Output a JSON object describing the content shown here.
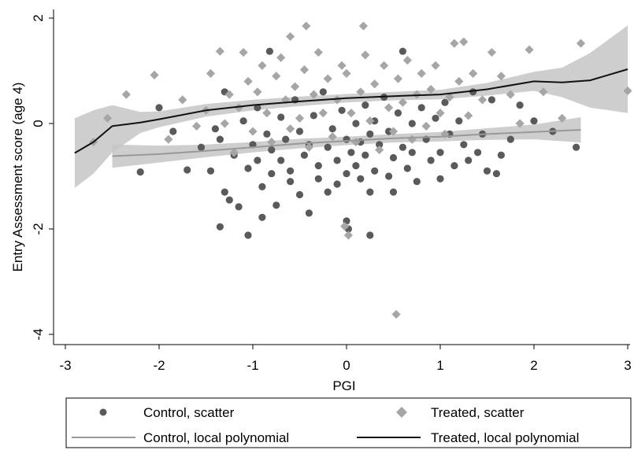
{
  "chart_data": {
    "type": "scatter",
    "xlabel": "PGI",
    "ylabel": "Entry Assessment score (age 4)",
    "xlim": [
      -3,
      3
    ],
    "ylim": [
      -4.2,
      2.1
    ],
    "xticks": [
      -3,
      -2,
      -1,
      0,
      1,
      2,
      3
    ],
    "yticks": [
      -4,
      -2,
      0,
      2
    ],
    "xtick_labels": [
      "-3",
      "-2",
      "-1",
      "0",
      "1",
      "2",
      "3"
    ],
    "ytick_labels": [
      "-4",
      "-2",
      "0",
      "2"
    ],
    "grid": false,
    "legend_position": "bottom",
    "legend": [
      {
        "label": "Control, scatter",
        "marker": "circle",
        "color": "#5a5a5a"
      },
      {
        "label": "Treated, scatter",
        "marker": "diamond",
        "color": "#a6a6a6"
      },
      {
        "label": "Control, local polynomial",
        "marker": "line",
        "color": "#999999"
      },
      {
        "label": "Treated, local polynomial",
        "marker": "line",
        "color": "#111111"
      }
    ],
    "series": [
      {
        "name": "Control, scatter",
        "kind": "scatter",
        "marker": "circle",
        "color": "#5a5a5a",
        "points": [
          [
            -2.2,
            -0.92
          ],
          [
            -2.0,
            0.3
          ],
          [
            -1.85,
            -0.15
          ],
          [
            -1.7,
            -0.88
          ],
          [
            -1.55,
            -0.45
          ],
          [
            -1.45,
            -0.9
          ],
          [
            -1.4,
            -0.1
          ],
          [
            -1.35,
            -0.3
          ],
          [
            -1.35,
            -1.96
          ],
          [
            -1.3,
            -1.3
          ],
          [
            -1.3,
            0.6
          ],
          [
            -1.25,
            -1.45
          ],
          [
            -1.2,
            -0.6
          ],
          [
            -1.15,
            -1.58
          ],
          [
            -1.1,
            0.05
          ],
          [
            -1.05,
            -0.85
          ],
          [
            -1.05,
            -2.12
          ],
          [
            -1.0,
            -0.4
          ],
          [
            -0.95,
            -0.7
          ],
          [
            -0.95,
            0.3
          ],
          [
            -0.9,
            -1.2
          ],
          [
            -0.9,
            -1.78
          ],
          [
            -0.85,
            -0.2
          ],
          [
            -0.82,
            1.37
          ],
          [
            -0.8,
            -0.5
          ],
          [
            -0.8,
            -0.95
          ],
          [
            -0.75,
            -1.55
          ],
          [
            -0.7,
            0.12
          ],
          [
            -0.7,
            -0.7
          ],
          [
            -0.65,
            -0.3
          ],
          [
            -0.6,
            -0.9
          ],
          [
            -0.6,
            -1.1
          ],
          [
            -0.55,
            0.45
          ],
          [
            -0.5,
            -0.15
          ],
          [
            -0.5,
            -1.35
          ],
          [
            -0.45,
            -0.6
          ],
          [
            -0.4,
            -0.4
          ],
          [
            -0.4,
            -1.7
          ],
          [
            -0.35,
            0.15
          ],
          [
            -0.3,
            -0.8
          ],
          [
            -0.3,
            -1.05
          ],
          [
            -0.25,
            0.6
          ],
          [
            -0.2,
            -0.45
          ],
          [
            -0.2,
            -1.3
          ],
          [
            -0.15,
            -0.1
          ],
          [
            -0.1,
            -0.7
          ],
          [
            -0.1,
            -1.15
          ],
          [
            -0.05,
            0.25
          ],
          [
            0.0,
            -0.3
          ],
          [
            0.0,
            -0.95
          ],
          [
            0.0,
            -1.85
          ],
          [
            0.02,
            -2.0
          ],
          [
            0.05,
            -0.55
          ],
          [
            0.1,
            0.0
          ],
          [
            0.1,
            -0.8
          ],
          [
            0.15,
            -0.35
          ],
          [
            0.15,
            -1.05
          ],
          [
            0.2,
            0.35
          ],
          [
            0.2,
            -0.6
          ],
          [
            0.25,
            -0.2
          ],
          [
            0.25,
            -1.3
          ],
          [
            0.25,
            -2.12
          ],
          [
            0.3,
            -0.9
          ],
          [
            0.3,
            0.05
          ],
          [
            0.35,
            -0.4
          ],
          [
            0.4,
            0.5
          ],
          [
            0.45,
            -0.15
          ],
          [
            0.45,
            -1.0
          ],
          [
            0.5,
            -0.65
          ],
          [
            0.5,
            -1.3
          ],
          [
            0.55,
            0.2
          ],
          [
            0.6,
            -0.45
          ],
          [
            0.6,
            1.37
          ],
          [
            0.65,
            -0.85
          ],
          [
            0.7,
            0.0
          ],
          [
            0.7,
            -0.55
          ],
          [
            0.75,
            -1.1
          ],
          [
            0.8,
            0.3
          ],
          [
            0.85,
            -0.3
          ],
          [
            0.9,
            -0.7
          ],
          [
            0.95,
            0.1
          ],
          [
            1.0,
            -0.55
          ],
          [
            1.0,
            -1.05
          ],
          [
            1.05,
            0.4
          ],
          [
            1.1,
            -0.2
          ],
          [
            1.15,
            -0.8
          ],
          [
            1.2,
            0.05
          ],
          [
            1.25,
            -0.4
          ],
          [
            1.3,
            -0.7
          ],
          [
            1.35,
            0.6
          ],
          [
            1.4,
            -0.55
          ],
          [
            1.45,
            -0.2
          ],
          [
            1.5,
            -0.9
          ],
          [
            1.55,
            0.45
          ],
          [
            1.6,
            -0.95
          ],
          [
            1.65,
            -0.6
          ],
          [
            1.75,
            -0.3
          ],
          [
            1.85,
            0.35
          ],
          [
            2.0,
            0.05
          ],
          [
            2.2,
            -0.15
          ],
          [
            2.45,
            -0.45
          ]
        ]
      },
      {
        "name": "Treated, scatter",
        "kind": "scatter",
        "marker": "diamond",
        "color": "#a6a6a6",
        "points": [
          [
            -2.7,
            -0.35
          ],
          [
            -2.55,
            0.1
          ],
          [
            -2.35,
            0.55
          ],
          [
            -2.05,
            0.92
          ],
          [
            -1.9,
            -0.3
          ],
          [
            -1.75,
            0.45
          ],
          [
            -1.6,
            -0.05
          ],
          [
            -1.5,
            0.25
          ],
          [
            -1.45,
            0.95
          ],
          [
            -1.35,
            1.37
          ],
          [
            -1.3,
            0.0
          ],
          [
            -1.25,
            0.55
          ],
          [
            -1.2,
            -0.55
          ],
          [
            -1.15,
            0.3
          ],
          [
            -1.1,
            1.35
          ],
          [
            -1.05,
            0.8
          ],
          [
            -1.0,
            -0.15
          ],
          [
            -0.95,
            0.6
          ],
          [
            -0.9,
            1.1
          ],
          [
            -0.85,
            0.2
          ],
          [
            -0.8,
            -0.35
          ],
          [
            -0.75,
            0.9
          ],
          [
            -0.7,
            1.25
          ],
          [
            -0.65,
            0.45
          ],
          [
            -0.6,
            -0.1
          ],
          [
            -0.6,
            1.65
          ],
          [
            -0.55,
            0.7
          ],
          [
            -0.5,
            0.1
          ],
          [
            -0.45,
            1.02
          ],
          [
            -0.43,
            1.85
          ],
          [
            -0.4,
            -0.45
          ],
          [
            -0.35,
            0.55
          ],
          [
            -0.3,
            1.35
          ],
          [
            -0.25,
            0.2
          ],
          [
            -0.2,
            0.85
          ],
          [
            -0.15,
            -0.25
          ],
          [
            -0.1,
            0.45
          ],
          [
            -0.05,
            1.1
          ],
          [
            -0.02,
            -1.95
          ],
          [
            0.0,
            0.95
          ],
          [
            0.02,
            -2.12
          ],
          [
            0.05,
            0.2
          ],
          [
            0.1,
            -0.35
          ],
          [
            0.15,
            0.6
          ],
          [
            0.18,
            1.85
          ],
          [
            0.2,
            1.3
          ],
          [
            0.25,
            0.05
          ],
          [
            0.3,
            0.75
          ],
          [
            0.35,
            -0.5
          ],
          [
            0.4,
            1.1
          ],
          [
            0.45,
            0.3
          ],
          [
            0.5,
            -0.15
          ],
          [
            0.53,
            -3.62
          ],
          [
            0.55,
            0.85
          ],
          [
            0.6,
            0.4
          ],
          [
            0.65,
            1.2
          ],
          [
            0.7,
            -0.3
          ],
          [
            0.75,
            0.55
          ],
          [
            0.8,
            0.95
          ],
          [
            0.85,
            -0.05
          ],
          [
            0.9,
            0.65
          ],
          [
            0.95,
            1.1
          ],
          [
            1.0,
            0.2
          ],
          [
            1.05,
            -0.2
          ],
          [
            1.1,
            0.5
          ],
          [
            1.15,
            1.52
          ],
          [
            1.2,
            0.8
          ],
          [
            1.25,
            1.55
          ],
          [
            1.3,
            0.15
          ],
          [
            1.35,
            0.95
          ],
          [
            1.45,
            0.45
          ],
          [
            1.55,
            1.35
          ],
          [
            1.65,
            0.9
          ],
          [
            1.75,
            0.55
          ],
          [
            1.85,
            0.0
          ],
          [
            1.95,
            1.4
          ],
          [
            2.1,
            0.6
          ],
          [
            2.3,
            0.1
          ],
          [
            2.5,
            1.52
          ],
          [
            3.0,
            0.62
          ]
        ]
      },
      {
        "name": "Control, local polynomial",
        "kind": "line",
        "color": "#999999",
        "band_color": "#c6c6c6",
        "x": [
          -2.5,
          -2.0,
          -1.5,
          -1.0,
          -0.5,
          0.0,
          0.5,
          1.0,
          1.5,
          2.0,
          2.5
        ],
        "y": [
          -0.62,
          -0.58,
          -0.52,
          -0.45,
          -0.38,
          -0.33,
          -0.28,
          -0.25,
          -0.2,
          -0.16,
          -0.12
        ],
        "lower": [
          -0.84,
          -0.74,
          -0.64,
          -0.55,
          -0.47,
          -0.41,
          -0.36,
          -0.34,
          -0.31,
          -0.3,
          -0.36
        ],
        "upper": [
          -0.4,
          -0.42,
          -0.4,
          -0.35,
          -0.29,
          -0.25,
          -0.2,
          -0.16,
          -0.09,
          -0.02,
          0.12
        ]
      },
      {
        "name": "Treated, local polynomial",
        "kind": "line",
        "color": "#111111",
        "band_color": "#c6c6c6",
        "x": [
          -2.9,
          -2.7,
          -2.5,
          -2.2,
          -2.0,
          -1.5,
          -1.0,
          -0.5,
          0.0,
          0.5,
          1.0,
          1.5,
          2.0,
          2.3,
          2.6,
          3.0
        ],
        "y": [
          -0.56,
          -0.35,
          -0.05,
          0.02,
          0.08,
          0.25,
          0.35,
          0.42,
          0.48,
          0.52,
          0.55,
          0.65,
          0.8,
          0.78,
          0.82,
          1.03
        ],
        "lower": [
          -1.22,
          -0.95,
          -0.55,
          -0.18,
          -0.07,
          0.13,
          0.25,
          0.33,
          0.4,
          0.44,
          0.46,
          0.53,
          0.62,
          0.5,
          0.3,
          0.2
        ],
        "upper": [
          0.1,
          0.25,
          0.35,
          0.22,
          0.23,
          0.37,
          0.45,
          0.51,
          0.56,
          0.6,
          0.64,
          0.77,
          0.98,
          1.06,
          1.34,
          1.86
        ]
      }
    ]
  }
}
